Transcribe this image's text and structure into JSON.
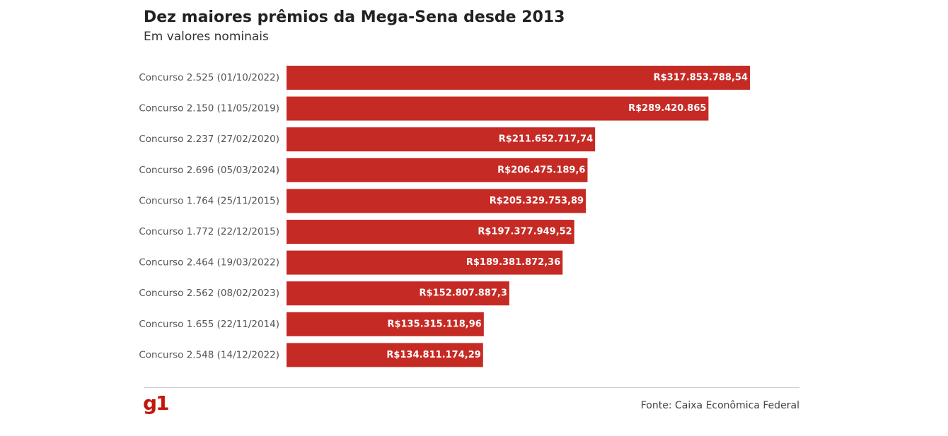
{
  "header": {
    "title": "Dez maiores prêmios da Mega-Sena desde 2013",
    "subtitle": "Em valores nominais"
  },
  "footer": {
    "logo": "g1",
    "source": "Fonte: Caixa Econômica Federal"
  },
  "colors": {
    "bar": "#c62a24",
    "bar_label": "#ffffff",
    "category_label": "#555555",
    "logo": "#c4170c"
  },
  "chart_data": {
    "type": "bar",
    "orientation": "horizontal",
    "title": "Dez maiores prêmios da Mega-Sena desde 2013",
    "subtitle": "Em valores nominais",
    "categories": [
      "Concurso 2.525 (01/10/2022)",
      "Concurso 2.150 (11/05/2019)",
      "Concurso 2.237 (27/02/2020)",
      "Concurso 2.696 (05/03/2024)",
      "Concurso 1.764 (25/11/2015)",
      "Concurso 1.772 (22/12/2015)",
      "Concurso 2.464 (19/03/2022)",
      "Concurso 2.562 (08/02/2023)",
      "Concurso 1.655 (22/11/2014)",
      "Concurso 2.548 (14/12/2022)"
    ],
    "values": [
      317853788.54,
      289420865,
      211652717.74,
      206475189.6,
      205329753.89,
      197377949.52,
      189381872.36,
      152807887.3,
      135315118.96,
      134811174.29
    ],
    "data_labels": [
      "R$317.853.788,54",
      "R$289.420.865",
      "R$211.652.717,74",
      "R$206.475.189,6",
      "R$205.329.753,89",
      "R$197.377.949,52",
      "R$189.381.872,36",
      "R$152.807.887,3",
      "R$135.315.118,96",
      "R$134.811.174,29"
    ],
    "xlim": [
      0,
      317853788.54
    ],
    "grid": false,
    "legend": "none",
    "source": "Fonte: Caixa Econômica Federal"
  }
}
